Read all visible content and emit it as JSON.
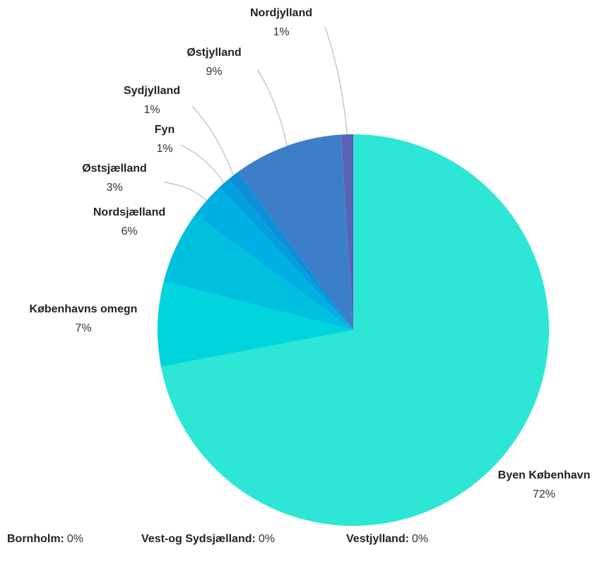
{
  "chart_data": {
    "type": "pie",
    "categories": [
      "Byen København",
      "Københavns omegn",
      "Nordsjælland",
      "Østsjælland",
      "Fyn",
      "Sydjylland",
      "Østjylland",
      "Nordjylland"
    ],
    "values": [
      72,
      7,
      6,
      3,
      1,
      1,
      9,
      1
    ],
    "value_labels": [
      "72%",
      "7%",
      "6%",
      "3%",
      "1%",
      "1%",
      "9%",
      "1%"
    ],
    "colors": [
      "#2ee6d6",
      "#00d4dc",
      "#00c0e0",
      "#00b0e2",
      "#00a0de",
      "#0f8fd8",
      "#3d7ec8",
      "#5a63b8"
    ],
    "zero_items": [
      {
        "name": "Bornholm",
        "value": 0,
        "label": "0%"
      },
      {
        "name": "Vest-og Sydsjælland",
        "value": 0,
        "label": "0%"
      },
      {
        "name": "Vestjylland",
        "value": 0,
        "label": "0%"
      }
    ]
  }
}
